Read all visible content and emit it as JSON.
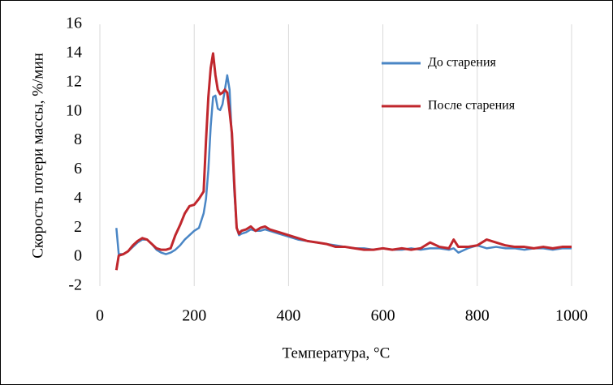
{
  "chart_data": {
    "type": "line",
    "x_label": "Температура, °C",
    "y_label": "Скорость потери массы, %/мин",
    "x": [
      35,
      40,
      50,
      60,
      70,
      80,
      90,
      100,
      110,
      120,
      130,
      140,
      150,
      160,
      170,
      180,
      190,
      200,
      210,
      220,
      225,
      230,
      235,
      240,
      245,
      250,
      255,
      260,
      265,
      270,
      275,
      280,
      285,
      290,
      295,
      300,
      310,
      320,
      330,
      340,
      350,
      360,
      380,
      400,
      420,
      440,
      460,
      480,
      500,
      520,
      540,
      560,
      580,
      600,
      620,
      640,
      660,
      680,
      700,
      720,
      740,
      750,
      760,
      780,
      800,
      820,
      840,
      860,
      880,
      900,
      920,
      940,
      960,
      980,
      1000
    ],
    "series": [
      {
        "name": "До старения",
        "color": "#4a86c5",
        "values": [
          2.0,
          0.2,
          0.2,
          0.4,
          0.7,
          1.0,
          1.2,
          1.2,
          0.9,
          0.5,
          0.3,
          0.2,
          0.3,
          0.5,
          0.8,
          1.2,
          1.5,
          1.8,
          2.0,
          3.0,
          4.0,
          6.0,
          9.0,
          11.0,
          11.1,
          10.2,
          10.1,
          10.5,
          11.5,
          12.5,
          11.5,
          8.0,
          4.5,
          2.0,
          1.5,
          1.6,
          1.7,
          1.9,
          1.8,
          1.8,
          1.9,
          1.8,
          1.6,
          1.4,
          1.2,
          1.1,
          1.0,
          0.9,
          0.8,
          0.7,
          0.6,
          0.6,
          0.5,
          0.6,
          0.5,
          0.5,
          0.6,
          0.5,
          0.6,
          0.6,
          0.5,
          0.6,
          0.3,
          0.6,
          0.8,
          0.6,
          0.7,
          0.6,
          0.6,
          0.5,
          0.6,
          0.6,
          0.5,
          0.6,
          0.6
        ]
      },
      {
        "name": "После старения",
        "color": "#c0272d",
        "values": [
          -0.9,
          0.1,
          0.2,
          0.4,
          0.8,
          1.1,
          1.3,
          1.2,
          0.9,
          0.6,
          0.5,
          0.5,
          0.6,
          1.5,
          2.2,
          3.0,
          3.5,
          3.6,
          4.0,
          4.5,
          8.0,
          11.0,
          13.0,
          14.0,
          12.5,
          11.5,
          11.2,
          11.3,
          11.5,
          11.3,
          10.0,
          8.5,
          5.0,
          2.0,
          1.6,
          1.8,
          1.9,
          2.1,
          1.8,
          2.0,
          2.1,
          1.9,
          1.7,
          1.5,
          1.3,
          1.1,
          1.0,
          0.9,
          0.7,
          0.7,
          0.6,
          0.5,
          0.5,
          0.6,
          0.5,
          0.6,
          0.5,
          0.6,
          1.0,
          0.7,
          0.6,
          1.2,
          0.7,
          0.7,
          0.8,
          1.2,
          1.0,
          0.8,
          0.7,
          0.7,
          0.6,
          0.7,
          0.6,
          0.7,
          0.7
        ]
      }
    ],
    "xlim": [
      0,
      1000
    ],
    "xticks": [
      0,
      200,
      400,
      600,
      800,
      1000
    ],
    "ylim": [
      -2,
      16
    ],
    "yticks": [
      -2,
      0,
      2,
      4,
      6,
      8,
      10,
      12,
      14,
      16
    ],
    "grid": "x",
    "legend": "upper right"
  }
}
